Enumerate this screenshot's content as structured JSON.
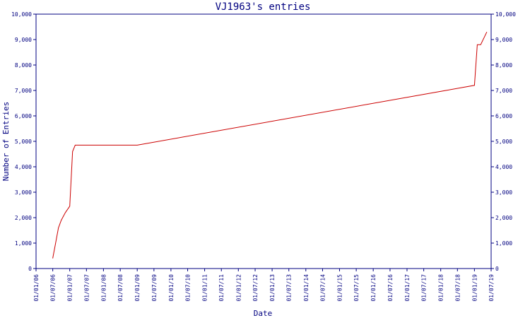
{
  "chart_data": {
    "type": "line",
    "title": "VJ1963's entries",
    "xlabel": "Date",
    "ylabel": "Number of Entries",
    "ylim": [
      0,
      10000
    ],
    "y_ticks": [
      0,
      1000,
      2000,
      3000,
      4000,
      5000,
      6000,
      7000,
      8000,
      9000,
      10000
    ],
    "y_tick_labels": [
      "0",
      "1,000",
      "2,000",
      "3,000",
      "4,000",
      "5,000",
      "6,000",
      "7,000",
      "8,000",
      "9,000",
      "10,000"
    ],
    "x_ticks": [
      "2006-01-01",
      "2006-07-01",
      "2007-01-01",
      "2007-07-01",
      "2008-01-01",
      "2008-07-01",
      "2009-01-01",
      "2009-07-01",
      "2010-01-01",
      "2010-07-01",
      "2011-01-01",
      "2011-07-01",
      "2012-01-01",
      "2012-07-01",
      "2013-01-01",
      "2013-07-01",
      "2014-01-01",
      "2014-07-01",
      "2015-01-01",
      "2015-07-01",
      "2016-01-01",
      "2016-07-01",
      "2017-01-01",
      "2017-07-01",
      "2018-01-01",
      "2018-07-01",
      "2019-01-01",
      "2019-07-01"
    ],
    "x_tick_labels": [
      "01/01/06",
      "01/07/06",
      "01/01/07",
      "01/07/07",
      "01/01/08",
      "01/07/08",
      "01/01/09",
      "01/07/09",
      "01/01/10",
      "01/07/10",
      "01/01/11",
      "01/07/11",
      "01/01/12",
      "01/07/12",
      "01/01/13",
      "01/07/13",
      "01/01/14",
      "01/07/14",
      "01/01/15",
      "01/07/15",
      "01/01/16",
      "01/07/16",
      "01/01/17",
      "01/07/17",
      "01/01/18",
      "01/07/18",
      "01/01/19",
      "01/07/19"
    ],
    "grid": false,
    "line_color": "#cc0000",
    "axis_color": "#000080",
    "series": [
      {
        "points": [
          [
            "2006-07-01",
            400
          ],
          [
            "2006-08-01",
            1000
          ],
          [
            "2006-09-01",
            1600
          ],
          [
            "2006-10-01",
            1900
          ],
          [
            "2006-11-15",
            2200
          ],
          [
            "2007-01-01",
            2450
          ],
          [
            "2007-02-01",
            4600
          ],
          [
            "2007-03-01",
            4850
          ],
          [
            "2007-06-01",
            4850
          ],
          [
            "2008-06-01",
            4850
          ],
          [
            "2009-01-01",
            4850
          ],
          [
            "2019-01-01",
            7200
          ],
          [
            "2019-02-01",
            8800
          ],
          [
            "2019-03-10",
            8800
          ],
          [
            "2019-05-15",
            9300
          ]
        ]
      }
    ]
  }
}
